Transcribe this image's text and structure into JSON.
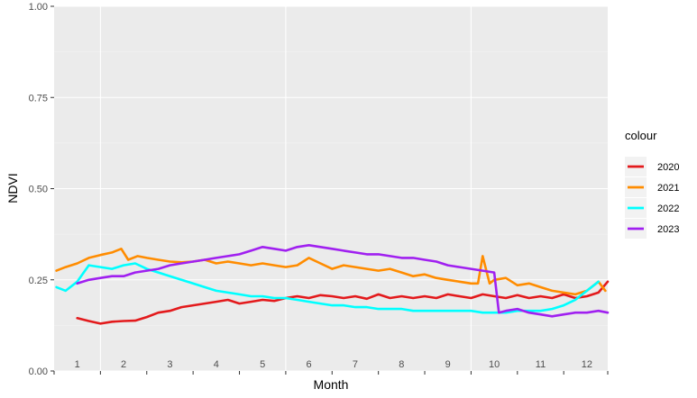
{
  "chart_data": {
    "type": "line",
    "title": "",
    "xlabel": "Month",
    "ylabel": "NDVI",
    "ylim": [
      0,
      1
    ],
    "xlim": [
      0.5,
      12.45
    ],
    "y_ticks": [
      "0.00",
      "0.25",
      "0.50",
      "0.75",
      "1.00"
    ],
    "y_tick_values": [
      0,
      0.25,
      0.5,
      0.75,
      1.0
    ],
    "x_ticks": [
      "1",
      "2",
      "3",
      "4",
      "5",
      "6",
      "7",
      "8",
      "9",
      "10",
      "11",
      "12"
    ],
    "x_tick_values": [
      1,
      2,
      3,
      4,
      5,
      6,
      7,
      8,
      9,
      10,
      11,
      12
    ],
    "grid": true,
    "legend_position": "right",
    "legend_title": "colour",
    "series": [
      {
        "name": "2020",
        "color": "#e31a1c",
        "x": [
          1.0,
          1.25,
          1.5,
          1.75,
          2.0,
          2.25,
          2.5,
          2.75,
          3.0,
          3.25,
          3.5,
          3.75,
          4.0,
          4.25,
          4.5,
          4.75,
          5.0,
          5.25,
          5.5,
          5.75,
          6.0,
          6.25,
          6.5,
          6.75,
          7.0,
          7.25,
          7.5,
          7.75,
          8.0,
          8.25,
          8.5,
          8.75,
          9.0,
          9.25,
          9.5,
          9.75,
          10.0,
          10.25,
          10.5,
          10.75,
          11.0,
          11.25,
          11.5,
          11.75,
          12.0,
          12.25,
          12.45
        ],
        "y": [
          0.145,
          0.137,
          0.13,
          0.135,
          0.137,
          0.138,
          0.148,
          0.16,
          0.165,
          0.175,
          0.18,
          0.185,
          0.19,
          0.195,
          0.185,
          0.19,
          0.195,
          0.192,
          0.2,
          0.205,
          0.2,
          0.208,
          0.205,
          0.2,
          0.205,
          0.198,
          0.21,
          0.2,
          0.205,
          0.2,
          0.205,
          0.2,
          0.21,
          0.205,
          0.2,
          0.21,
          0.205,
          0.2,
          0.208,
          0.2,
          0.205,
          0.2,
          0.21,
          0.2,
          0.205,
          0.215,
          0.245
        ]
      },
      {
        "name": "2021",
        "color": "#ff8c00",
        "x": [
          0.55,
          0.75,
          1.0,
          1.25,
          1.5,
          1.75,
          1.95,
          2.1,
          2.3,
          2.5,
          2.75,
          3.0,
          3.25,
          3.5,
          3.75,
          4.0,
          4.25,
          4.5,
          4.75,
          5.0,
          5.25,
          5.5,
          5.75,
          6.0,
          6.25,
          6.5,
          6.75,
          7.0,
          7.25,
          7.5,
          7.75,
          8.0,
          8.25,
          8.5,
          8.75,
          9.0,
          9.25,
          9.5,
          9.65,
          9.75,
          9.9,
          10.0,
          10.25,
          10.5,
          10.75,
          11.0,
          11.25,
          11.5,
          11.75,
          12.0,
          12.25,
          12.4
        ],
        "y": [
          0.275,
          0.285,
          0.295,
          0.31,
          0.318,
          0.325,
          0.335,
          0.305,
          0.315,
          0.31,
          0.305,
          0.3,
          0.298,
          0.3,
          0.305,
          0.295,
          0.3,
          0.295,
          0.29,
          0.295,
          0.29,
          0.285,
          0.29,
          0.31,
          0.295,
          0.28,
          0.29,
          0.285,
          0.28,
          0.275,
          0.28,
          0.27,
          0.26,
          0.265,
          0.255,
          0.25,
          0.245,
          0.24,
          0.24,
          0.315,
          0.24,
          0.25,
          0.255,
          0.235,
          0.24,
          0.23,
          0.22,
          0.215,
          0.21,
          0.22,
          0.245,
          0.22
        ]
      },
      {
        "name": "2022",
        "color": "#00ffff",
        "x": [
          0.55,
          0.75,
          1.0,
          1.25,
          1.5,
          1.75,
          2.0,
          2.25,
          2.5,
          2.75,
          3.0,
          3.25,
          3.5,
          3.75,
          4.0,
          4.25,
          4.5,
          4.75,
          5.0,
          5.25,
          5.5,
          5.75,
          6.0,
          6.25,
          6.5,
          6.75,
          7.0,
          7.25,
          7.5,
          7.75,
          8.0,
          8.25,
          8.5,
          8.75,
          9.0,
          9.25,
          9.5,
          9.75,
          10.0,
          10.25,
          10.5,
          10.75,
          11.0,
          11.25,
          11.5,
          11.75,
          12.0,
          12.25
        ],
        "y": [
          0.23,
          0.22,
          0.245,
          0.29,
          0.285,
          0.28,
          0.29,
          0.295,
          0.28,
          0.27,
          0.26,
          0.25,
          0.24,
          0.23,
          0.22,
          0.215,
          0.21,
          0.205,
          0.205,
          0.2,
          0.2,
          0.195,
          0.19,
          0.185,
          0.18,
          0.18,
          0.175,
          0.175,
          0.17,
          0.17,
          0.17,
          0.165,
          0.165,
          0.165,
          0.165,
          0.165,
          0.165,
          0.16,
          0.16,
          0.16,
          0.165,
          0.165,
          0.165,
          0.17,
          0.18,
          0.195,
          0.22,
          0.245
        ]
      },
      {
        "name": "2023",
        "color": "#a020f0",
        "x": [
          1.0,
          1.25,
          1.5,
          1.75,
          2.0,
          2.25,
          2.5,
          2.75,
          3.0,
          3.25,
          3.5,
          3.75,
          4.0,
          4.25,
          4.5,
          4.75,
          5.0,
          5.25,
          5.5,
          5.75,
          6.0,
          6.25,
          6.5,
          6.75,
          7.0,
          7.25,
          7.5,
          7.75,
          8.0,
          8.25,
          8.5,
          8.75,
          9.0,
          9.25,
          9.5,
          9.75,
          10.0,
          10.1,
          10.25,
          10.5,
          10.75,
          11.0,
          11.25,
          11.5,
          11.75,
          12.0,
          12.25,
          12.45
        ],
        "y": [
          0.24,
          0.25,
          0.255,
          0.26,
          0.26,
          0.27,
          0.275,
          0.28,
          0.29,
          0.295,
          0.3,
          0.305,
          0.31,
          0.315,
          0.32,
          0.33,
          0.34,
          0.335,
          0.33,
          0.34,
          0.345,
          0.34,
          0.335,
          0.33,
          0.325,
          0.32,
          0.32,
          0.315,
          0.31,
          0.31,
          0.305,
          0.3,
          0.29,
          0.285,
          0.28,
          0.275,
          0.27,
          0.16,
          0.165,
          0.17,
          0.16,
          0.155,
          0.15,
          0.155,
          0.16,
          0.16,
          0.165,
          0.16
        ]
      }
    ]
  }
}
